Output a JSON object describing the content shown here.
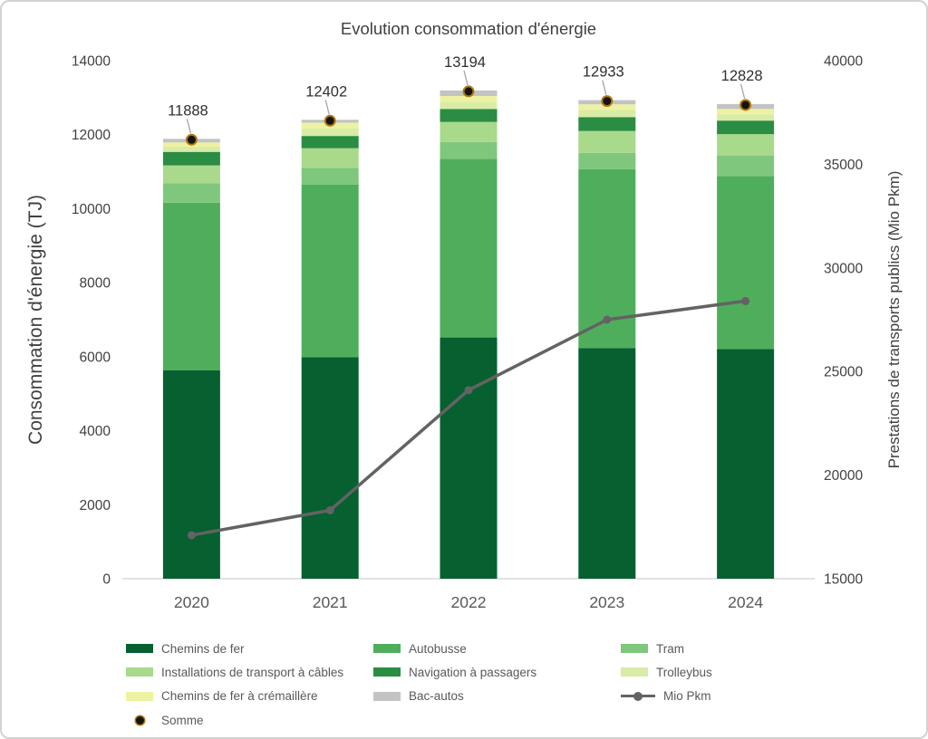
{
  "title": "Evolution consommation d'énergie",
  "chart_data": {
    "type": "bar",
    "subtype": "stacked-bar-with-line",
    "title": "Evolution consommation d'énergie",
    "categories": [
      "2020",
      "2021",
      "2022",
      "2023",
      "2024"
    ],
    "series": [
      {
        "name": "Chemins de fer",
        "color": "#06602F",
        "values": [
          5630,
          5990,
          6520,
          6235,
          6210
        ]
      },
      {
        "name": "Autobusse",
        "color": "#4FAE5C",
        "values": [
          4530,
          4665,
          4830,
          4830,
          4675
        ]
      },
      {
        "name": "Tram",
        "color": "#7FC77C",
        "values": [
          530,
          450,
          450,
          445,
          545
        ]
      },
      {
        "name": "Installations de transport à câbles",
        "color": "#A9D98B",
        "values": [
          480,
          530,
          545,
          590,
          585
        ]
      },
      {
        "name": "Navigation à passagers",
        "color": "#2B8C43",
        "values": [
          365,
          330,
          350,
          375,
          365
        ]
      },
      {
        "name": "Trolleybus",
        "color": "#D8ECA6",
        "values": [
          140,
          200,
          190,
          190,
          170
        ]
      },
      {
        "name": "Chemins de fer à crémaillère",
        "color": "#EDF2A2",
        "values": [
          115,
          160,
          160,
          155,
          145
        ]
      },
      {
        "name": "Bac-autos",
        "color": "#C3C3C3",
        "values": [
          98,
          77,
          149,
          113,
          133
        ]
      }
    ],
    "line_series": {
      "name": "Mio Pkm",
      "color": "#636363",
      "values": [
        17100,
        18300,
        24100,
        27500,
        28400
      ]
    },
    "sum_series": {
      "name": "Somme",
      "labels": [
        "11888",
        "12402",
        "13194",
        "12933",
        "12828"
      ],
      "values": [
        11888,
        12402,
        13194,
        12933,
        12828
      ],
      "marker_fill": "#141414",
      "marker_ring": "#B07A0A"
    },
    "left_axis": {
      "label": "Consommation d'énergie  (TJ)",
      "min": 0,
      "max": 14000,
      "step": 2000,
      "tick_labels": [
        "0",
        "2000",
        "4000",
        "6000",
        "8000",
        "10000",
        "12000",
        "14000"
      ]
    },
    "right_axis": {
      "label": "Prestations de transports publics (Mio Pkm)",
      "min": 15000,
      "max": 40000,
      "step": 5000,
      "tick_labels": [
        "15000",
        "20000",
        "25000",
        "30000",
        "35000",
        "40000"
      ]
    },
    "grid": false,
    "legend_position": "bottom"
  },
  "legend": {
    "items": [
      {
        "label": "Chemins de fer",
        "type": "swatch",
        "color": "#06602F"
      },
      {
        "label": "Autobusse",
        "type": "swatch",
        "color": "#4FAE5C"
      },
      {
        "label": "Tram",
        "type": "swatch",
        "color": "#7FC77C"
      },
      {
        "label": "Installations de transport à câbles",
        "type": "swatch",
        "color": "#A9D98B"
      },
      {
        "label": "Navigation à passagers",
        "type": "swatch",
        "color": "#2B8C43"
      },
      {
        "label": "Trolleybus",
        "type": "swatch",
        "color": "#D8ECA6"
      },
      {
        "label": "Chemins de fer à crémaillère",
        "type": "swatch",
        "color": "#EDF2A2"
      },
      {
        "label": "Bac-autos",
        "type": "swatch",
        "color": "#C3C3C3"
      },
      {
        "label": "Mio Pkm",
        "type": "line",
        "color": "#636363"
      },
      {
        "label": "Somme",
        "type": "dot",
        "color": "#141414",
        "ring": "#B07A0A"
      }
    ]
  },
  "colors": {
    "axis_text": "#404040",
    "title_text": "#3F3F3F",
    "sum_label_text": "#303030",
    "baseline": "#D9D9D9",
    "leader_line": "#A6A6A6"
  }
}
